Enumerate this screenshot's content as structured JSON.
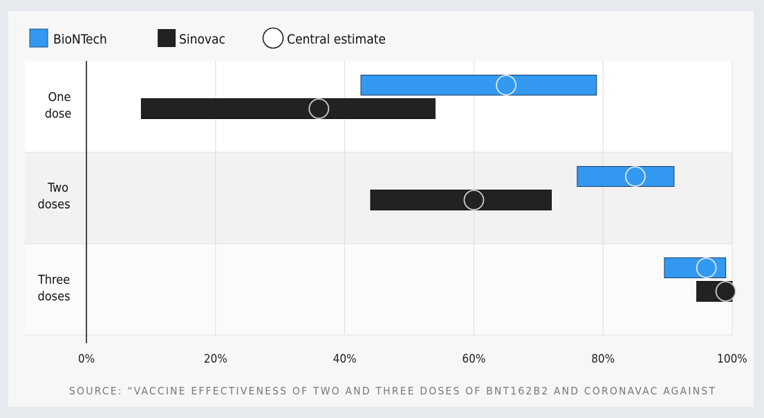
{
  "chart_data": {
    "type": "range-bar",
    "title": "",
    "xlabel": "",
    "ylabel": "",
    "xlim": [
      0,
      100
    ],
    "x_ticks": [
      "0%",
      "20%",
      "40%",
      "60%",
      "80%",
      "100%"
    ],
    "x_tick_values": [
      0,
      20,
      40,
      60,
      80,
      100
    ],
    "grid": true,
    "legend_position": "top-left",
    "legend": {
      "biontech": "BioNTech",
      "sinovac": "Sinovac",
      "central": "Central estimate"
    },
    "categories": [
      {
        "key": "one",
        "line1": "One",
        "line2": "dose"
      },
      {
        "key": "two",
        "line1": "Two",
        "line2": "doses"
      },
      {
        "key": "three",
        "line1": "Three",
        "line2": "doses"
      }
    ],
    "series": [
      {
        "name": "BioNTech",
        "color": "#3399f0",
        "marker_stroke": "#dce9f7",
        "values": [
          {
            "low": 42.5,
            "high": 79,
            "estimate": 65
          },
          {
            "low": 76,
            "high": 91,
            "estimate": 85
          },
          {
            "low": 89.5,
            "high": 99,
            "estimate": 96
          }
        ]
      },
      {
        "name": "Sinovac",
        "color": "#222222",
        "marker_stroke": "#cfcfcf",
        "values": [
          {
            "low": 8.5,
            "high": 54,
            "estimate": 36
          },
          {
            "low": 44,
            "high": 72,
            "estimate": 60
          },
          {
            "low": 94.5,
            "high": 100,
            "estimate": 99
          }
        ]
      }
    ],
    "source": "SOURCE: “VACCINE EFFECTIVENESS OF TWO AND THREE DOSES OF BNT162B2 AND CORONAVAC AGAINST"
  }
}
